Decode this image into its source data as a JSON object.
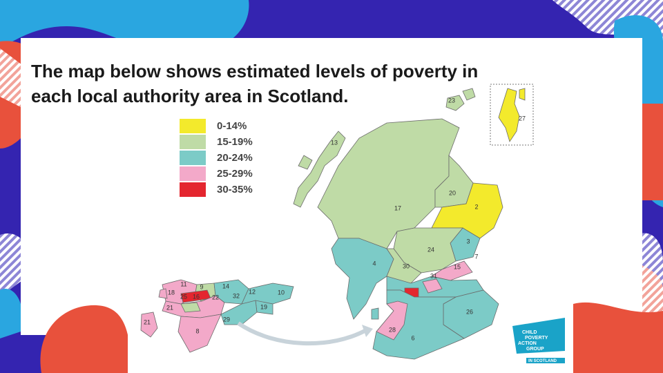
{
  "title": [
    "The map below shows estimated levels of poverty in",
    "each local authority area in Scotland."
  ],
  "legend": [
    {
      "label": "0-14%",
      "color": "#f3ea2c"
    },
    {
      "label": "15-19%",
      "color": "#bfdba6"
    },
    {
      "label": "20-24%",
      "color": "#7ccbc7"
    },
    {
      "label": "25-29%",
      "color": "#f3a9c9"
    },
    {
      "label": "30-35%",
      "color": "#e4262f"
    }
  ],
  "map_labels": [
    "13",
    "20",
    "2",
    "17",
    "3",
    "24",
    "4",
    "30",
    "7",
    "15",
    "23",
    "27",
    "26",
    "28",
    "6",
    "31",
    "9",
    "14",
    "12",
    "32",
    "22",
    "10",
    "19",
    "18",
    "25",
    "16",
    "21",
    "29",
    "8",
    "11",
    "21"
  ],
  "logo": [
    "CHILD",
    "POVERTY",
    "ACTION",
    "GROUP",
    "IN SCOTLAND"
  ]
}
